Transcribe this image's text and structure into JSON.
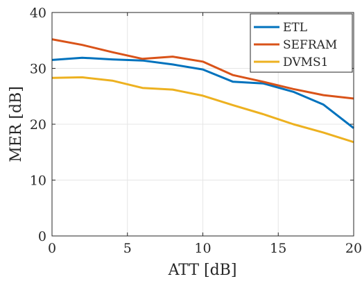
{
  "chart_data": {
    "type": "line",
    "title": "",
    "xlabel": "ATT [dB]",
    "ylabel": "MER [dB]",
    "xlim": [
      0,
      20
    ],
    "ylim": [
      0,
      40
    ],
    "xticks": [
      0,
      5,
      10,
      15,
      20
    ],
    "yticks": [
      0,
      10,
      20,
      30,
      40
    ],
    "grid": true,
    "legend_position": "top-right",
    "x": [
      0,
      2,
      4,
      6,
      8,
      10,
      12,
      14,
      16,
      18,
      20
    ],
    "series": [
      {
        "name": "ETL",
        "color": "#0072BD",
        "values": [
          31.5,
          31.9,
          31.6,
          31.4,
          30.7,
          29.8,
          27.6,
          27.3,
          25.8,
          23.5,
          19.3
        ]
      },
      {
        "name": "SEFRAM",
        "color": "#D95319",
        "values": [
          35.2,
          34.2,
          32.9,
          31.7,
          32.1,
          31.2,
          28.8,
          27.6,
          26.3,
          25.2,
          24.6
        ]
      },
      {
        "name": "DVMS1",
        "color": "#EDB120",
        "values": [
          28.3,
          28.4,
          27.8,
          26.5,
          26.2,
          25.1,
          23.4,
          21.8,
          20.0,
          18.5,
          16.8
        ]
      }
    ]
  }
}
